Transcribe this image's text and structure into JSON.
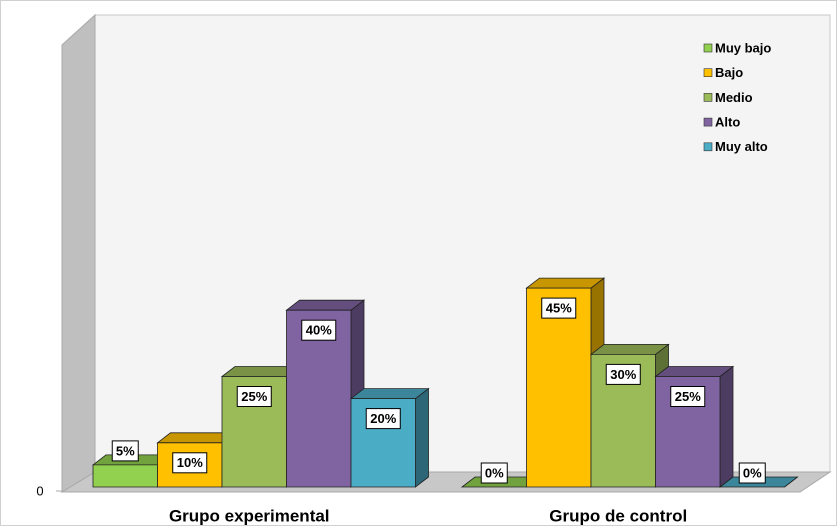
{
  "chart_data": {
    "type": "bar3d",
    "categories": [
      "Grupo experimental",
      "Grupo de control"
    ],
    "series": [
      {
        "name": "Muy bajo",
        "color": "#92d050",
        "values": [
          5,
          0
        ],
        "value_labels": [
          "5%",
          "0%"
        ]
      },
      {
        "name": "Bajo",
        "color": "#ffc000",
        "values": [
          10,
          45
        ],
        "value_labels": [
          "10%",
          "45%"
        ]
      },
      {
        "name": "Medio",
        "color": "#9bbb59",
        "values": [
          25,
          30
        ],
        "value_labels": [
          "25%",
          "30%"
        ]
      },
      {
        "name": "Alto",
        "color": "#8064a2",
        "values": [
          40,
          25
        ],
        "value_labels": [
          "40%",
          "25%"
        ]
      },
      {
        "name": "Muy alto",
        "color": "#4bacc6",
        "values": [
          20,
          0
        ],
        "value_labels": [
          "20%",
          "0%"
        ]
      }
    ],
    "ylim": [
      0,
      100
    ],
    "yticks": [
      0
    ],
    "legend": "top-right"
  }
}
